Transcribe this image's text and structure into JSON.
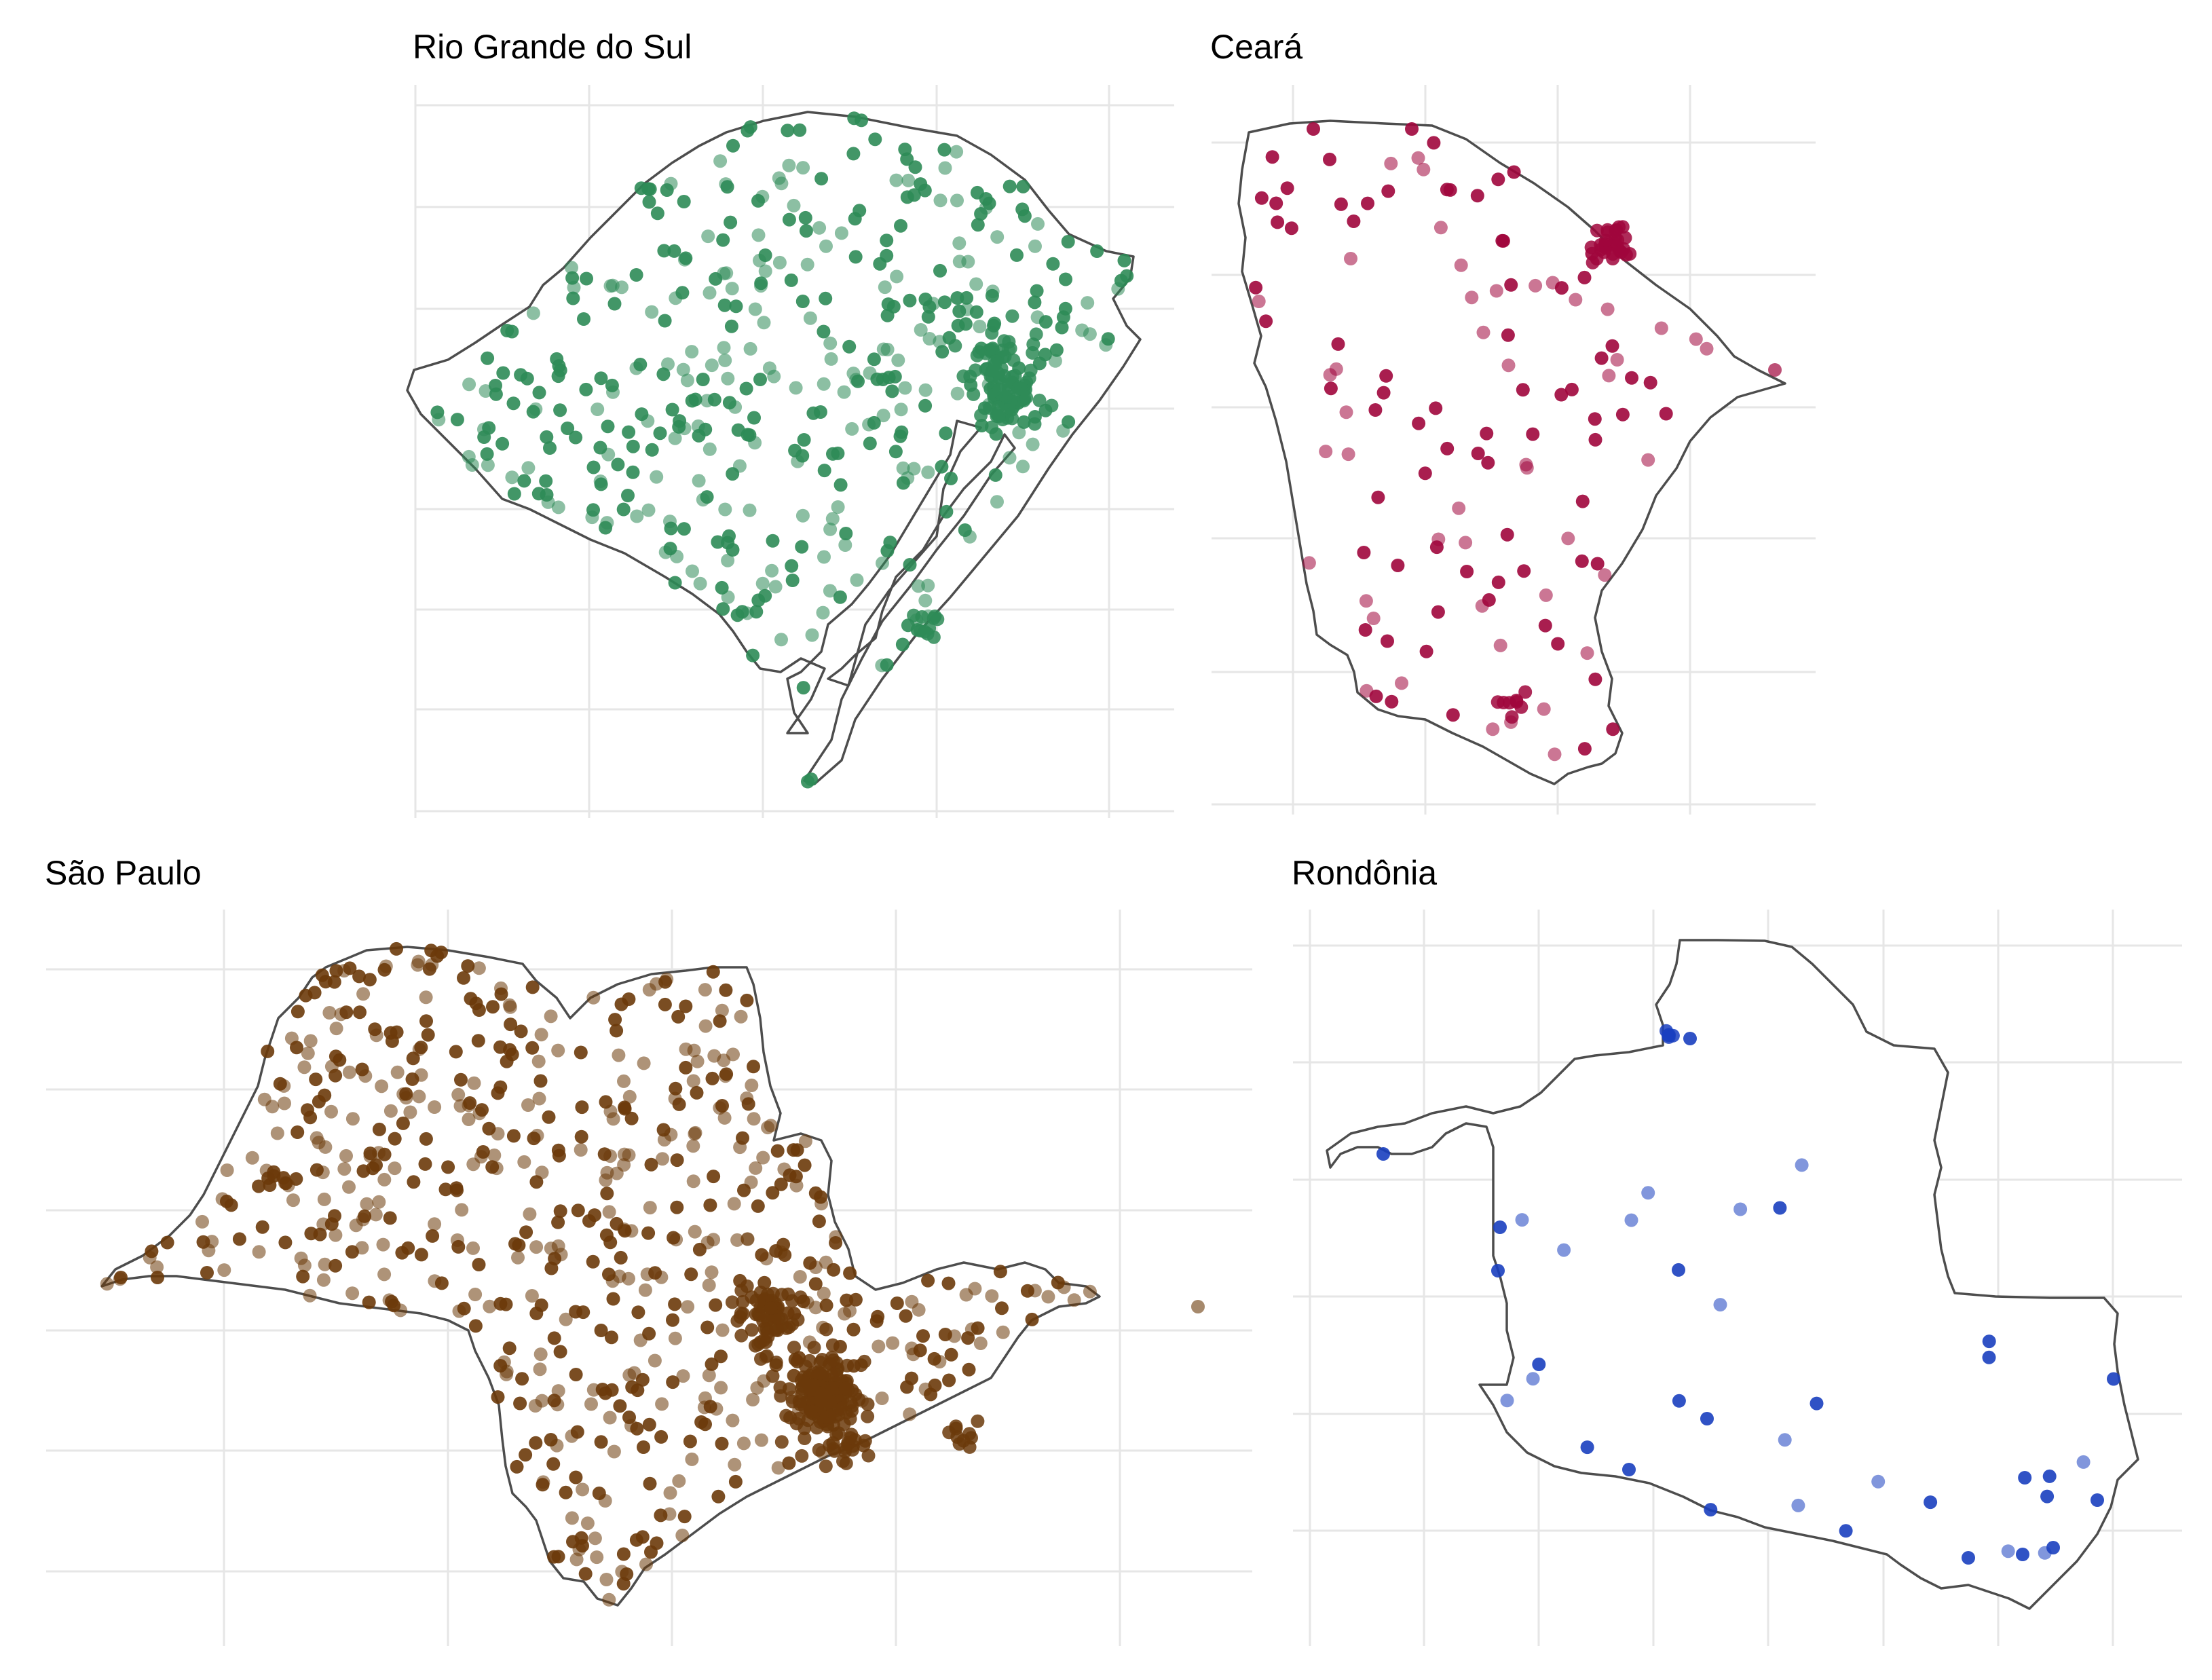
{
  "panels": [
    {
      "id": "rs",
      "title": "Rio Grande do Sul",
      "color": "#2e8b57"
    },
    {
      "id": "ce",
      "title": "Ceará",
      "color": "#a0063c"
    },
    {
      "id": "sp",
      "title": "São Paulo",
      "color": "#6b3a0a"
    },
    {
      "id": "ro",
      "title": "Rondônia",
      "color": "#1a3fbf"
    }
  ]
}
